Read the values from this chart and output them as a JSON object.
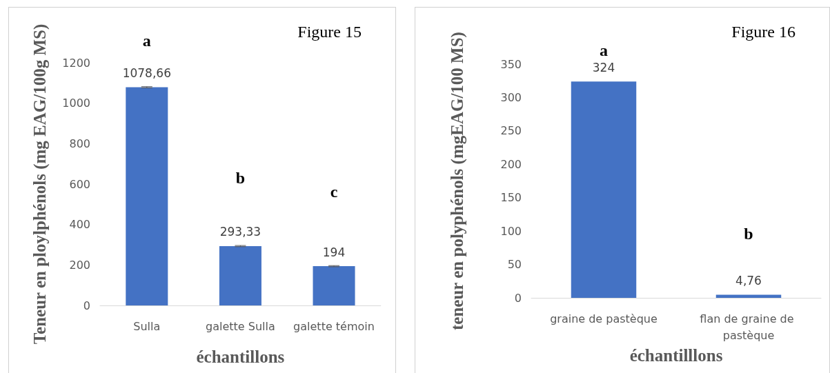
{
  "chart_data": [
    {
      "type": "bar",
      "title": "Figure 15",
      "ylabel": "Teneur en ploylphénols (mg EAG/100g MS)",
      "xlabel": "échantillons",
      "categories": [
        "Sulla",
        "galette Sulla",
        "galette témoin"
      ],
      "series": [
        {
          "color": "#4472c4",
          "values": [
            1078.66,
            293.33,
            194
          ],
          "errors": [
            3,
            3,
            3
          ],
          "value_labels": [
            "1078,66",
            "293,33",
            "194"
          ]
        }
      ],
      "ylim": [
        0,
        1200
      ],
      "yticks": [
        0,
        200,
        400,
        600,
        800,
        1000,
        1200
      ],
      "annotations": [
        "a",
        "b",
        "c"
      ]
    },
    {
      "type": "bar",
      "title": "Figure 16",
      "ylabel": "teneur en polyphénols (mgEAG/100 MS)",
      "xlabel": "échantilllons",
      "categories": [
        "graine de pastèque",
        "flan de graine de pastèque"
      ],
      "series": [
        {
          "color": "#4472c4",
          "values": [
            324,
            4.76
          ],
          "value_labels": [
            "324",
            "4,76"
          ]
        }
      ],
      "ylim": [
        0,
        350
      ],
      "yticks": [
        0,
        50,
        100,
        150,
        200,
        250,
        300,
        350
      ],
      "annotations": [
        "a",
        "b"
      ]
    }
  ]
}
